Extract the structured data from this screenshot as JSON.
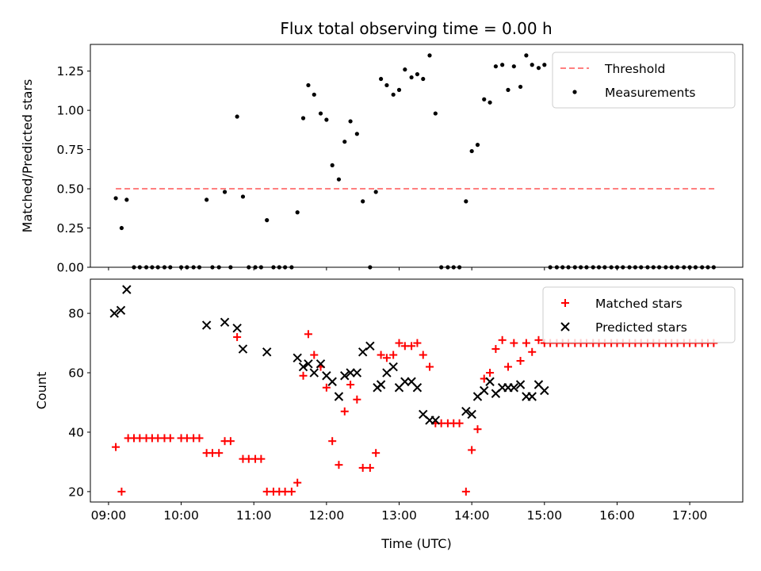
{
  "title": "Flux total observing time = 0.00 h",
  "chart_data": [
    {
      "type": "scatter",
      "ylabel": "Matched/Predicted stars",
      "ylim": [
        0,
        1.42
      ],
      "xlim": [
        8.75,
        17.73
      ],
      "yticks": [
        "0.00",
        "0.25",
        "0.50",
        "0.75",
        "1.00",
        "1.25"
      ],
      "legend_position": "top-right",
      "threshold": {
        "name": "Threshold",
        "value": 0.5,
        "x_range": [
          9.1,
          17.35
        ],
        "color": "#ff7f7f"
      },
      "series": [
        {
          "name": "Measurements",
          "color": "#000000",
          "x": [
            9.1,
            9.18,
            9.25,
            9.35,
            9.43,
            9.52,
            9.6,
            9.68,
            9.77,
            9.85,
            10.0,
            10.08,
            10.17,
            10.25,
            10.35,
            10.43,
            10.52,
            10.6,
            10.68,
            10.77,
            10.85,
            10.93,
            11.02,
            11.1,
            11.18,
            11.27,
            11.35,
            11.43,
            11.52,
            11.6,
            11.68,
            11.75,
            11.83,
            11.92,
            12.0,
            12.08,
            12.17,
            12.25,
            12.33,
            12.42,
            12.5,
            12.6,
            12.68,
            12.75,
            12.83,
            12.92,
            13.0,
            13.08,
            13.17,
            13.25,
            13.33,
            13.42,
            13.5,
            13.58,
            13.67,
            13.75,
            13.83,
            13.92,
            14.0,
            14.08,
            14.17,
            14.25,
            14.33,
            14.42,
            14.5,
            14.58,
            14.67,
            14.75,
            14.83,
            14.92,
            15.0,
            15.08,
            15.17,
            15.25,
            15.33,
            15.42,
            15.5,
            15.58,
            15.67,
            15.75,
            15.83,
            15.92,
            16.0,
            16.08,
            16.17,
            16.25,
            16.33,
            16.42,
            16.5,
            16.58,
            16.67,
            16.75,
            16.83,
            16.92,
            17.0,
            17.08,
            17.17,
            17.25,
            17.33
          ],
          "y": [
            0.44,
            0.25,
            0.43,
            0,
            0,
            0,
            0,
            0,
            0,
            0,
            0,
            0,
            0,
            0,
            0.43,
            0,
            0,
            0.48,
            0,
            0.96,
            0.45,
            0,
            0,
            0,
            0.3,
            0,
            0,
            0,
            0,
            0.35,
            0.95,
            1.16,
            1.1,
            0.98,
            0.94,
            0.65,
            0.56,
            0.8,
            0.93,
            0.85,
            0.42,
            0,
            0.48,
            1.2,
            1.16,
            1.1,
            1.13,
            1.26,
            1.21,
            1.23,
            1.2,
            1.35,
            0.98,
            0,
            0,
            0,
            0,
            0.42,
            0.74,
            0.78,
            1.07,
            1.05,
            1.28,
            1.29,
            1.13,
            1.28,
            1.15,
            1.35,
            1.29,
            1.27,
            1.29,
            0,
            0,
            0,
            0,
            0,
            0,
            0,
            0,
            0,
            0,
            0,
            0,
            0,
            0,
            0,
            0,
            0,
            0,
            0,
            0,
            0,
            0,
            0,
            0,
            0,
            0,
            0,
            0
          ]
        }
      ]
    },
    {
      "type": "scatter",
      "xlabel": "Time (UTC)",
      "ylabel": "Count",
      "ylim": [
        16.5,
        91.5
      ],
      "xlim": [
        8.75,
        17.73
      ],
      "yticks": [
        "20",
        "40",
        "60",
        "80"
      ],
      "xticks": [
        "09:00",
        "10:00",
        "11:00",
        "12:00",
        "13:00",
        "14:00",
        "15:00",
        "16:00",
        "17:00"
      ],
      "legend_position": "top-right",
      "series": [
        {
          "name": "Matched stars",
          "marker": "+",
          "color": "#ff0000",
          "x": [
            9.1,
            9.18,
            9.27,
            9.35,
            9.43,
            9.52,
            9.6,
            9.68,
            9.77,
            9.85,
            10.0,
            10.08,
            10.17,
            10.25,
            10.35,
            10.43,
            10.52,
            10.6,
            10.68,
            10.77,
            10.85,
            10.93,
            11.02,
            11.1,
            11.18,
            11.27,
            11.35,
            11.43,
            11.52,
            11.6,
            11.68,
            11.75,
            11.83,
            11.92,
            12.0,
            12.08,
            12.17,
            12.25,
            12.33,
            12.42,
            12.5,
            12.6,
            12.68,
            12.75,
            12.83,
            12.92,
            13.0,
            13.08,
            13.17,
            13.25,
            13.33,
            13.42,
            13.5,
            13.58,
            13.67,
            13.75,
            13.83,
            13.92,
            14.0,
            14.08,
            14.17,
            14.25,
            14.33,
            14.42,
            14.5,
            14.58,
            14.67,
            14.75,
            14.83,
            14.92,
            15.0,
            15.08,
            15.17,
            15.25,
            15.33,
            15.42,
            15.5,
            15.58,
            15.67,
            15.75,
            15.83,
            15.92,
            16.0,
            16.08,
            16.17,
            16.25,
            16.33,
            16.42,
            16.5,
            16.58,
            16.67,
            16.75,
            16.83,
            16.92,
            17.0,
            17.08,
            17.17,
            17.25,
            17.33
          ],
          "y": [
            35,
            20,
            38,
            38,
            38,
            38,
            38,
            38,
            38,
            38,
            38,
            38,
            38,
            38,
            33,
            33,
            33,
            37,
            37,
            72,
            31,
            31,
            31,
            31,
            20,
            20,
            20,
            20,
            20,
            23,
            59,
            73,
            66,
            62,
            55,
            37,
            29,
            47,
            56,
            51,
            28,
            28,
            33,
            66,
            65,
            66,
            70,
            69,
            69,
            70,
            66,
            62,
            43,
            43,
            43,
            43,
            43,
            20,
            34,
            41,
            58,
            60,
            68,
            71,
            62,
            70,
            64,
            70,
            67,
            71,
            70,
            70,
            70,
            70,
            70,
            70,
            70,
            70,
            70,
            70,
            70,
            70,
            70,
            70,
            70,
            70,
            70,
            70,
            70,
            70,
            70,
            70,
            70,
            70,
            70,
            70,
            70,
            70,
            70
          ]
        },
        {
          "name": "Predicted stars",
          "marker": "x",
          "color": "#000000",
          "x": [
            9.08,
            9.17,
            9.25,
            10.35,
            10.6,
            10.77,
            10.85,
            11.18,
            11.6,
            11.68,
            11.75,
            11.83,
            11.92,
            12.0,
            12.08,
            12.17,
            12.25,
            12.33,
            12.42,
            12.5,
            12.6,
            12.7,
            12.75,
            12.83,
            12.92,
            13.0,
            13.08,
            13.17,
            13.25,
            13.33,
            13.42,
            13.5,
            13.92,
            14.0,
            14.08,
            14.17,
            14.25,
            14.33,
            14.42,
            14.5,
            14.58,
            14.67,
            14.75,
            14.83,
            14.92,
            15.0
          ],
          "y": [
            80,
            81,
            88,
            76,
            77,
            75,
            68,
            67,
            65,
            62,
            63,
            60,
            63,
            59,
            57,
            52,
            59,
            60,
            60,
            67,
            69,
            55,
            56,
            60,
            62,
            55,
            57,
            57,
            55,
            46,
            44,
            44,
            47,
            46,
            52,
            54,
            57,
            53,
            55,
            55,
            55,
            56,
            52,
            52,
            56,
            54
          ]
        }
      ]
    }
  ]
}
